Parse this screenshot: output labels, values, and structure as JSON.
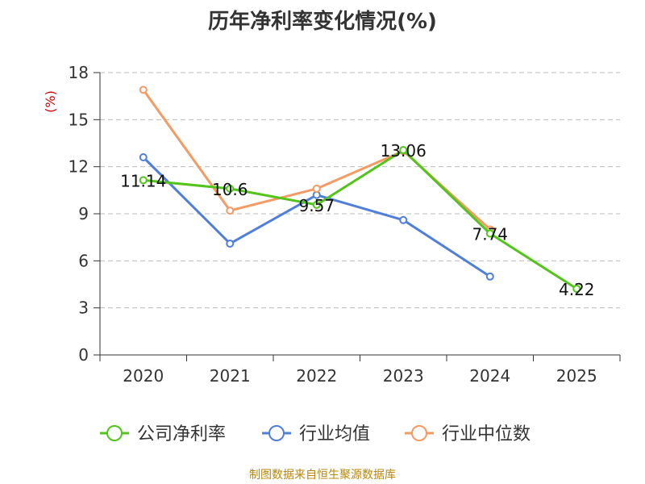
{
  "colors": {
    "company": "#52c41a",
    "industry_avg": "#4f7fdb",
    "industry_median": "#f59a62",
    "grid": "#bbbbbb",
    "axis": "#333333",
    "ylabel": "#cc0000",
    "source": "#b8860b"
  },
  "source_note": "制图数据来自恒生聚源数据库",
  "chart_data": {
    "type": "line",
    "title": "历年净利率变化情况(%)",
    "xlabel": "",
    "ylabel": "(%)",
    "categories": [
      "2020",
      "2021",
      "2022",
      "2023",
      "2024",
      "2025"
    ],
    "ylim": [
      0,
      18
    ],
    "yticks": [
      0,
      3,
      6,
      9,
      12,
      15,
      18
    ],
    "grid": true,
    "legend": "bottom",
    "series": [
      {
        "name": "公司净利率",
        "color_key": "company",
        "values": [
          11.14,
          10.6,
          9.57,
          13.06,
          7.74,
          4.22
        ],
        "labels": [
          "11.14",
          "10.6",
          "9.57",
          "13.06",
          "7.74",
          "4.22"
        ]
      },
      {
        "name": "行业均值",
        "color_key": "industry_avg",
        "values": [
          12.6,
          7.1,
          10.2,
          8.6,
          5.0,
          null
        ]
      },
      {
        "name": "行业中位数",
        "color_key": "industry_median",
        "values": [
          16.9,
          9.2,
          10.6,
          13.0,
          8.0,
          null
        ]
      }
    ]
  }
}
